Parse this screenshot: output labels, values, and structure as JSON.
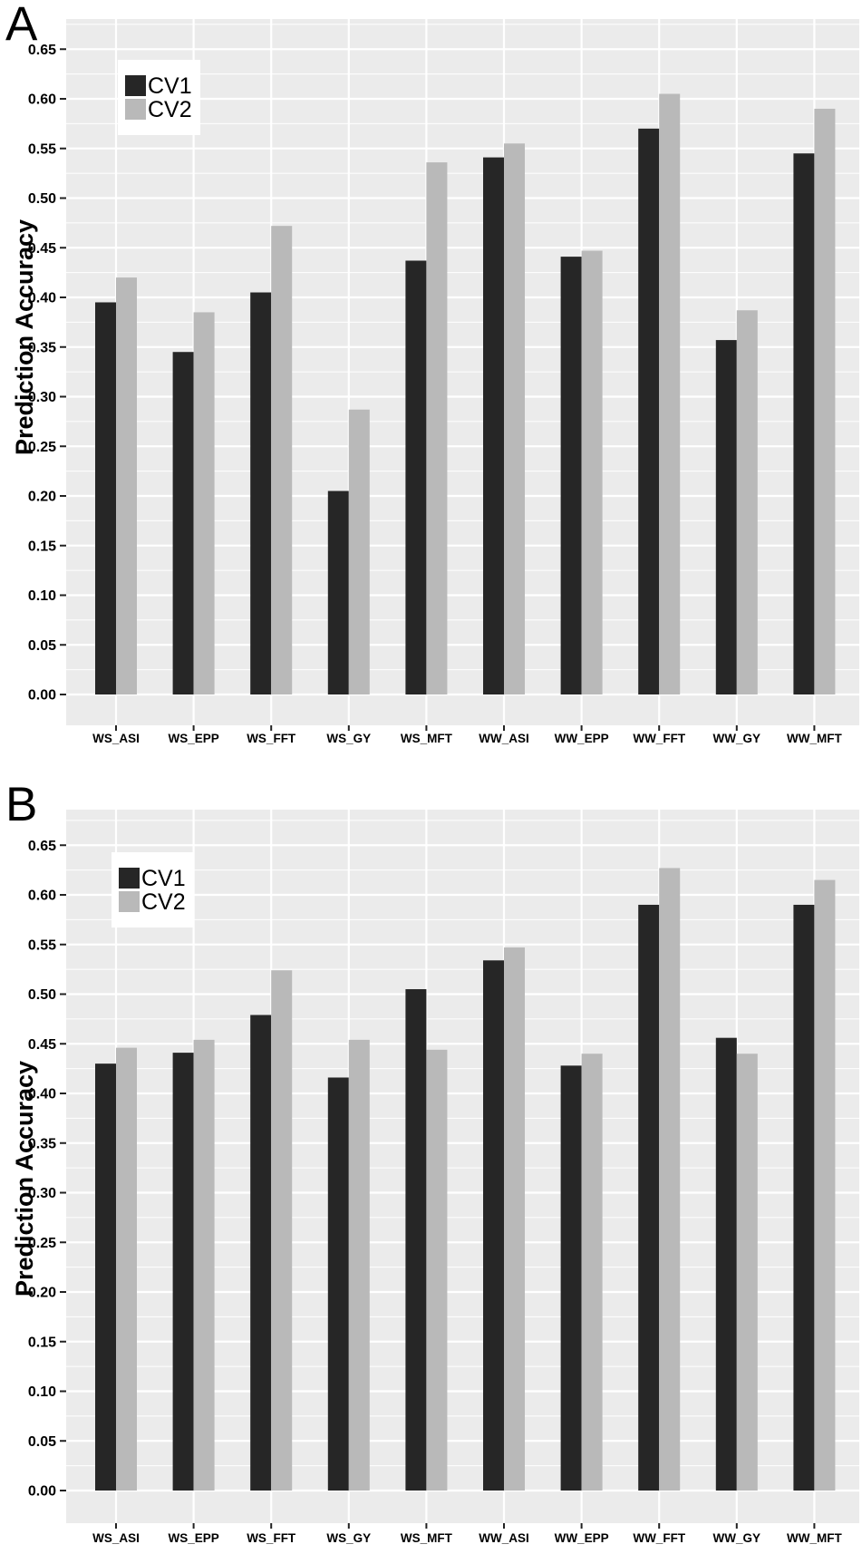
{
  "chart_data": [
    {
      "type": "bar",
      "panel_label": "A",
      "ylabel": "Prediction Accuracy",
      "xlabel": "",
      "categories": [
        "WS_ASI",
        "WS_EPP",
        "WS_FFT",
        "WS_GY",
        "WS_MFT",
        "WW_ASI",
        "WW_EPP",
        "WW_FFT",
        "WW_GY",
        "WW_MFT"
      ],
      "series": [
        {
          "name": "CV1",
          "color": "#262626",
          "values": [
            0.395,
            0.345,
            0.405,
            0.205,
            0.437,
            0.541,
            0.441,
            0.57,
            0.357,
            0.545
          ]
        },
        {
          "name": "CV2",
          "color": "#B9B9B9",
          "values": [
            0.42,
            0.385,
            0.472,
            0.287,
            0.536,
            0.555,
            0.447,
            0.605,
            0.387,
            0.59
          ]
        }
      ],
      "ylim": [
        0,
        0.69
      ],
      "y_tick_step": 0.05,
      "y_ticks": [
        "0.00",
        "0.05",
        "0.10",
        "0.15",
        "0.20",
        "0.25",
        "0.30",
        "0.35",
        "0.40",
        "0.45",
        "0.50",
        "0.55",
        "0.60",
        "0.65"
      ],
      "legend_position": "top-left-inside",
      "grid": true,
      "panel_background": "#EBEBEB",
      "gridline_color": "#FFFFFF"
    },
    {
      "type": "bar",
      "panel_label": "B",
      "ylabel": "Prediction Accuracy",
      "xlabel": "",
      "categories": [
        "WS_ASI",
        "WS_EPP",
        "WS_FFT",
        "WS_GY",
        "WS_MFT",
        "WW_ASI",
        "WW_EPP",
        "WW_FFT",
        "WW_GY",
        "WW_MFT"
      ],
      "series": [
        {
          "name": "CV1",
          "color": "#262626",
          "values": [
            0.43,
            0.441,
            0.479,
            0.416,
            0.505,
            0.534,
            0.428,
            0.59,
            0.456,
            0.59
          ]
        },
        {
          "name": "CV2",
          "color": "#B9B9B9",
          "values": [
            0.446,
            0.454,
            0.524,
            0.454,
            0.444,
            0.547,
            0.44,
            0.627,
            0.44,
            0.615
          ]
        }
      ],
      "ylim": [
        0,
        0.69
      ],
      "y_tick_step": 0.05,
      "y_ticks": [
        "0.00",
        "0.05",
        "0.10",
        "0.15",
        "0.20",
        "0.25",
        "0.30",
        "0.35",
        "0.40",
        "0.45",
        "0.50",
        "0.55",
        "0.60",
        "0.65"
      ],
      "legend_position": "top-left-inside",
      "grid": true,
      "panel_background": "#EBEBEB",
      "gridline_color": "#FFFFFF"
    }
  ]
}
